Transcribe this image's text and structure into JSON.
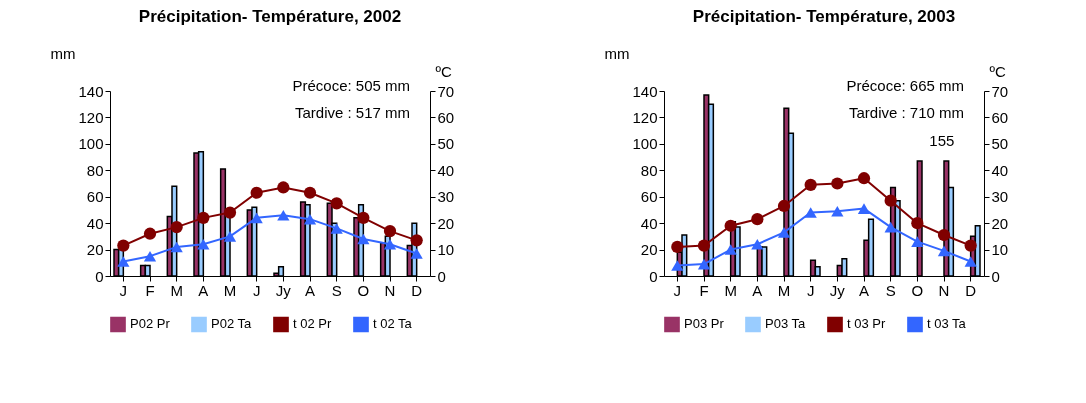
{
  "chart_data": [
    {
      "type": "bar",
      "title": "Précipitation- Température, 2002",
      "ylabel": "mm",
      "y2label": "ºC",
      "categories": [
        "J",
        "F",
        "M",
        "A",
        "M",
        "J",
        "Jy",
        "A",
        "S",
        "O",
        "N",
        "D"
      ],
      "series": [
        {
          "name": "P02 Pr",
          "color": "#993366",
          "values": [
            20,
            8,
            45,
            93,
            81,
            50,
            2,
            56,
            55,
            44,
            25,
            23
          ]
        },
        {
          "name": "P02 Ta",
          "color": "#99ccff",
          "values": [
            20,
            8,
            68,
            94,
            46,
            52,
            7,
            54,
            40,
            54,
            30,
            40
          ]
        },
        {
          "name": "t 02 Pr",
          "type": "line",
          "axis": "y2",
          "marker": "circle",
          "color": "#800000",
          "values": [
            11.5,
            16,
            18.5,
            22,
            24,
            31.5,
            33.5,
            31.5,
            27.5,
            22,
            17,
            13.5
          ]
        },
        {
          "name": "t 02 Ta",
          "type": "line",
          "axis": "y2",
          "marker": "triangle",
          "color": "#3366ff",
          "values": [
            5.5,
            7.5,
            11,
            12,
            15,
            22,
            23,
            21.5,
            18,
            14,
            12,
            8.5
          ]
        }
      ],
      "ylim": [
        0,
        140
      ],
      "yticks": [
        0,
        20,
        40,
        60,
        80,
        100,
        120,
        140
      ],
      "y2lim": [
        0,
        70
      ],
      "y2ticks": [
        0,
        10,
        20,
        30,
        40,
        50,
        60,
        70
      ],
      "annotations": [
        "Précoce: 505 mm",
        "Tardive : 517 mm"
      ],
      "legend": "bottom"
    },
    {
      "type": "bar",
      "title": "Précipitation- Température, 2003",
      "ylabel": "mm",
      "y2label": "ºC",
      "categories": [
        "J",
        "F",
        "M",
        "A",
        "M",
        "J",
        "Jy",
        "A",
        "S",
        "O",
        "N",
        "D"
      ],
      "series": [
        {
          "name": "P03 Pr",
          "color": "#993366",
          "values": [
            18,
            137,
            41,
            22,
            127,
            12,
            8,
            27,
            67,
            87,
            87,
            30
          ]
        },
        {
          "name": "P03 Ta",
          "color": "#99ccff",
          "values": [
            31,
            130,
            37,
            22,
            108,
            7,
            13,
            43,
            57,
            null,
            67,
            38
          ],
          "value_labels": [
            null,
            null,
            null,
            null,
            null,
            null,
            null,
            null,
            null,
            "155",
            null,
            null
          ]
        },
        {
          "name": "t 03 Pr",
          "type": "line",
          "axis": "y2",
          "marker": "circle",
          "color": "#800000",
          "values": [
            11,
            11.5,
            19,
            21.5,
            26.5,
            34.5,
            35,
            37,
            28.5,
            20,
            15.5,
            11.5
          ]
        },
        {
          "name": "t 03 Ta",
          "type": "line",
          "axis": "y2",
          "marker": "triangle",
          "color": "#3366ff",
          "values": [
            4,
            4.5,
            10,
            12,
            16.5,
            24,
            24.5,
            25.5,
            18.5,
            13,
            9.5,
            5.5
          ]
        }
      ],
      "ylim": [
        0,
        140
      ],
      "yticks": [
        0,
        20,
        40,
        60,
        80,
        100,
        120,
        140
      ],
      "y2lim": [
        0,
        70
      ],
      "y2ticks": [
        0,
        10,
        20,
        30,
        40,
        50,
        60,
        70
      ],
      "annotations": [
        "Précoce: 665 mm",
        "Tardive : 710 mm"
      ],
      "legend": "bottom"
    }
  ]
}
